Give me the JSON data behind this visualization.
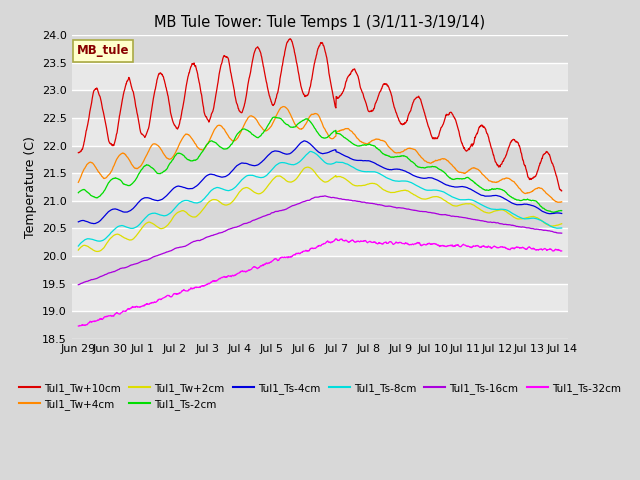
{
  "title": "MB Tule Tower: Tule Temps 1 (3/1/11-3/19/14)",
  "ylabel": "Temperature (C)",
  "ylim": [
    18.5,
    24.0
  ],
  "yticks": [
    18.5,
    19.0,
    19.5,
    20.0,
    20.5,
    21.0,
    21.5,
    22.0,
    22.5,
    23.0,
    23.5,
    24.0
  ],
  "xlabel_ticks": [
    "Jun 29",
    "Jun 30",
    "Jul 1",
    "Jul 2",
    "Jul 3",
    "Jul 4",
    "Jul 5",
    "Jul 6",
    "Jul 7",
    "Jul 8",
    "Jul 9",
    "Jul 10",
    "Jul 11",
    "Jul 12",
    "Jul 13",
    "Jul 14"
  ],
  "fig_bg": "#d8d8d8",
  "plot_bg": "#e8e8e8",
  "grid_color": "#ffffff",
  "series": [
    {
      "label": "Tul1_Tw+10cm",
      "color": "#dd0000"
    },
    {
      "label": "Tul1_Tw+4cm",
      "color": "#ff8800"
    },
    {
      "label": "Tul1_Tw+2cm",
      "color": "#dddd00"
    },
    {
      "label": "Tul1_Ts-2cm",
      "color": "#00dd00"
    },
    {
      "label": "Tul1_Ts-4cm",
      "color": "#0000dd"
    },
    {
      "label": "Tul1_Ts-8cm",
      "color": "#00dddd"
    },
    {
      "label": "Tul1_Ts-16cm",
      "color": "#aa00dd"
    },
    {
      "label": "Tul1_Ts-32cm",
      "color": "#ff00ff"
    }
  ],
  "annotation": {
    "text": "MB_tule",
    "bg": "#ffffcc",
    "border": "#aaaa44"
  }
}
